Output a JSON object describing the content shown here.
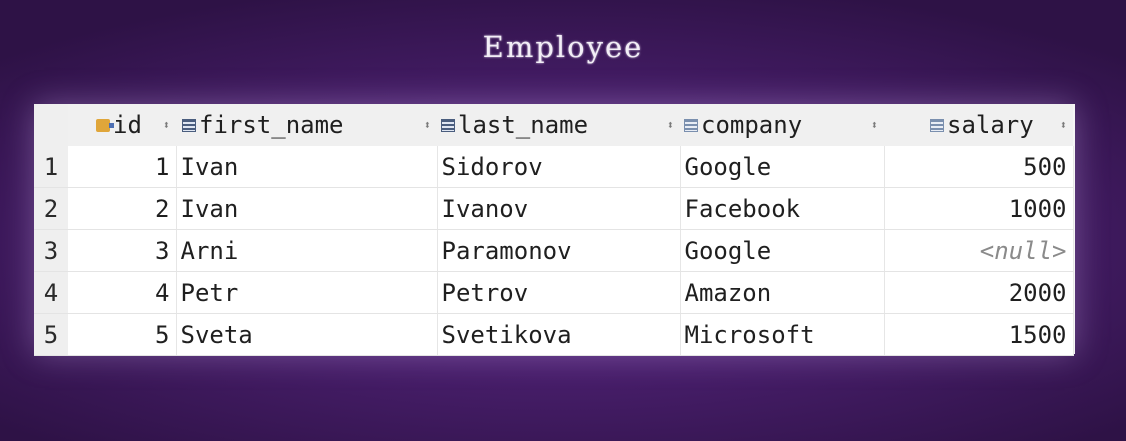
{
  "title": "Employee",
  "columns": [
    {
      "name": "id",
      "icon": "primary-key-icon"
    },
    {
      "name": "first_name",
      "icon": "column-icon"
    },
    {
      "name": "last_name",
      "icon": "column-icon"
    },
    {
      "name": "company",
      "icon": "column-icon"
    },
    {
      "name": "salary",
      "icon": "column-icon"
    }
  ],
  "sort_glyph": "⬍",
  "rows": [
    {
      "num": "1",
      "id": "1",
      "first_name": "Ivan",
      "last_name": "Sidorov",
      "company": "Google",
      "salary": "500"
    },
    {
      "num": "2",
      "id": "2",
      "first_name": "Ivan",
      "last_name": "Ivanov",
      "company": "Facebook",
      "salary": "1000"
    },
    {
      "num": "3",
      "id": "3",
      "first_name": "Arni",
      "last_name": "Paramonov",
      "company": "Google",
      "salary": "<null>"
    },
    {
      "num": "4",
      "id": "4",
      "first_name": "Petr",
      "last_name": "Petrov",
      "company": "Amazon",
      "salary": "2000"
    },
    {
      "num": "5",
      "id": "5",
      "first_name": "Sveta",
      "last_name": "Svetikova",
      "company": "Microsoft",
      "salary": "1500"
    }
  ]
}
